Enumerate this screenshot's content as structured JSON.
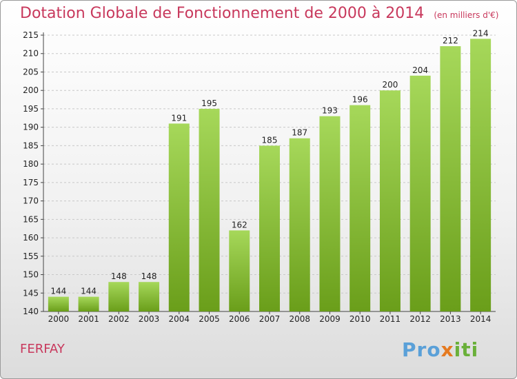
{
  "title": "Dotation Globale de Fonctionnement de 2000 à 2014",
  "subtitle": "(en milliers d'€)",
  "commune": "FERFAY",
  "logo": {
    "p1": "Pro",
    "p2": "x",
    "p3": "iti"
  },
  "chart_data": {
    "type": "bar",
    "categories": [
      "2000",
      "2001",
      "2002",
      "2003",
      "2004",
      "2005",
      "2006",
      "2007",
      "2008",
      "2009",
      "2010",
      "2011",
      "2012",
      "2013",
      "2014"
    ],
    "values": [
      144,
      144,
      148,
      148,
      191,
      195,
      162,
      185,
      187,
      193,
      196,
      200,
      204,
      212,
      214
    ],
    "title": "Dotation Globale de Fonctionnement de 2000 à 2014",
    "xlabel": "",
    "ylabel": "",
    "ylim": [
      140,
      215
    ],
    "yticks": [
      140,
      145,
      150,
      155,
      160,
      165,
      170,
      175,
      180,
      185,
      190,
      195,
      200,
      205,
      210,
      215
    ],
    "grid": true,
    "colors": {
      "bar_light": "#a6d85a",
      "bar_dark": "#6a9e1a",
      "grid": "#c8c8c8",
      "title": "#c8385c"
    }
  }
}
